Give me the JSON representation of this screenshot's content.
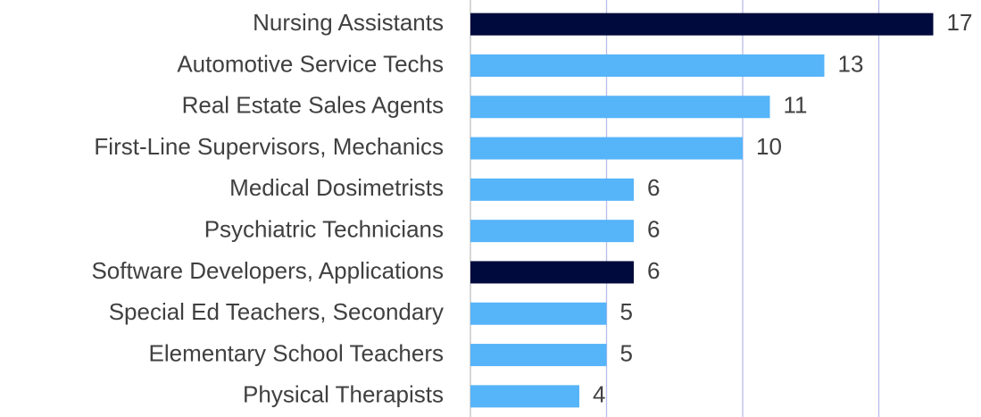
{
  "chart_data": {
    "type": "bar",
    "orientation": "horizontal",
    "categories": [
      "Nursing Assistants",
      "Automotive Service Techs",
      "Real Estate Sales Agents",
      "First-Line Supervisors, Mechanics",
      "Medical Dosimetrists",
      "Psychiatric Technicians",
      "Software Developers, Applications",
      "Special Ed Teachers, Secondary",
      "Elementary School Teachers",
      "Physical Therapists"
    ],
    "values": [
      17,
      13,
      11,
      10,
      6,
      6,
      6,
      5,
      5,
      4
    ],
    "colors": [
      "#000a3c",
      "#56b4f9",
      "#56b4f9",
      "#56b4f9",
      "#56b4f9",
      "#56b4f9",
      "#000a3c",
      "#56b4f9",
      "#56b4f9",
      "#56b4f9"
    ],
    "xlim": [
      0,
      18
    ],
    "xticks": [
      0,
      5,
      10,
      15
    ],
    "grid": true
  }
}
